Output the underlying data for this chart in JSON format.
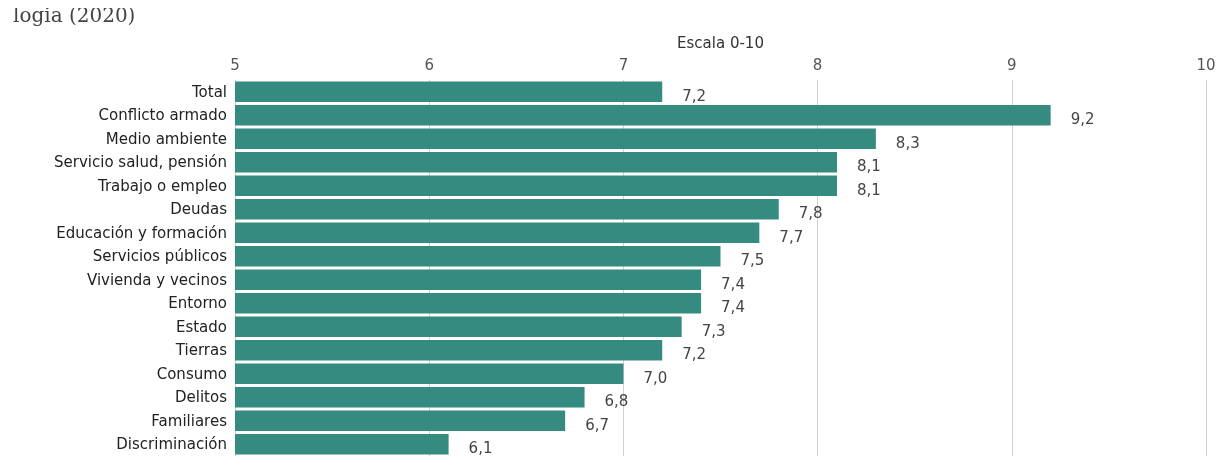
{
  "chart_data": {
    "type": "bar",
    "orientation": "horizontal",
    "title": "logia (2020)",
    "xlabel": "Escala 0-10",
    "categories": [
      "Total",
      "Conflicto armado",
      "Medio ambiente",
      "Servicio salud, pensión",
      "Trabajo o empleo",
      "Deudas",
      "Educación y formación",
      "Servicios públicos",
      "Vivienda y vecinos",
      "Entorno",
      "Estado",
      "Tierras",
      "Consumo",
      "Delitos",
      "Familiares",
      "Discriminación"
    ],
    "values": [
      7.2,
      9.2,
      8.3,
      8.1,
      8.1,
      7.8,
      7.7,
      7.5,
      7.4,
      7.4,
      7.3,
      7.2,
      7.0,
      6.8,
      6.7,
      6.1
    ],
    "value_labels": [
      "7,2",
      "9,2",
      "8,3",
      "8,1",
      "8,1",
      "7,8",
      "7,7",
      "7,5",
      "7,4",
      "7,4",
      "7,3",
      "7,2",
      "7,0",
      "6,8",
      "6,7",
      "6,1"
    ],
    "color": "#368b80",
    "xlim": [
      5,
      10
    ],
    "xticks": [
      5,
      6,
      7,
      8,
      9,
      10
    ],
    "grid": "x"
  }
}
